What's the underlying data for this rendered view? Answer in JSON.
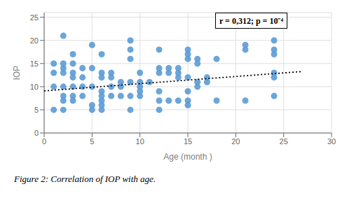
{
  "chart_data": {
    "type": "scatter",
    "xlabel": "Age (month )",
    "ylabel": "IOP",
    "annotation": "r = 0,312; p = 10⁻⁴",
    "caption": "Figure 2: Correlation of IOP with age.",
    "xlim": [
      0,
      30
    ],
    "ylim": [
      0,
      26
    ],
    "xticks": [
      0,
      5,
      10,
      15,
      20,
      25,
      30
    ],
    "yticks": [
      0,
      5,
      10,
      15,
      20,
      25
    ],
    "grid": true,
    "series": [
      {
        "type": "scatter",
        "color": "#5B9BD5",
        "marker": "circle",
        "x": [
          1,
          1,
          1,
          1,
          2,
          2,
          2,
          2,
          2,
          2,
          2,
          2,
          3,
          3,
          3,
          3,
          3,
          3,
          3,
          4,
          4,
          4,
          4,
          5,
          5,
          5,
          5,
          5,
          6,
          6,
          6,
          6,
          6,
          6,
          6,
          6,
          7,
          7,
          7,
          7,
          8,
          8,
          8,
          9,
          9,
          9,
          9,
          9,
          9,
          10,
          10,
          10,
          10,
          10,
          11,
          12,
          12,
          12,
          12,
          12,
          12,
          13,
          13,
          13,
          14,
          14,
          14,
          14,
          15,
          15,
          15,
          15,
          15,
          15,
          15,
          16,
          16,
          16,
          16,
          17,
          17,
          18,
          18,
          21,
          21,
          21,
          24,
          24,
          24,
          24,
          24,
          24
        ],
        "values": [
          5,
          10,
          13,
          15,
          5,
          7,
          8,
          10,
          13,
          14,
          15,
          21,
          7,
          8,
          10,
          12,
          13,
          15,
          17,
          8,
          10,
          12,
          14,
          5,
          6,
          10,
          14,
          19,
          5,
          6,
          7,
          8,
          9,
          12,
          13,
          17,
          8,
          10,
          12,
          13,
          8,
          10,
          11,
          5,
          8,
          11,
          16,
          18,
          20,
          8,
          9,
          10,
          11,
          13,
          11,
          5,
          7,
          9,
          13,
          14,
          18,
          7,
          13,
          14,
          7,
          12,
          13,
          14,
          6,
          7,
          9,
          12,
          16,
          17,
          18,
          10,
          11,
          15,
          16,
          11,
          12,
          7,
          16,
          7,
          18,
          19,
          8,
          12,
          13,
          17,
          18,
          20
        ]
      },
      {
        "type": "line",
        "color": "black",
        "line_style": "dotted",
        "x": [
          0,
          27
        ],
        "values": [
          9.1,
          13.285
        ]
      }
    ]
  }
}
